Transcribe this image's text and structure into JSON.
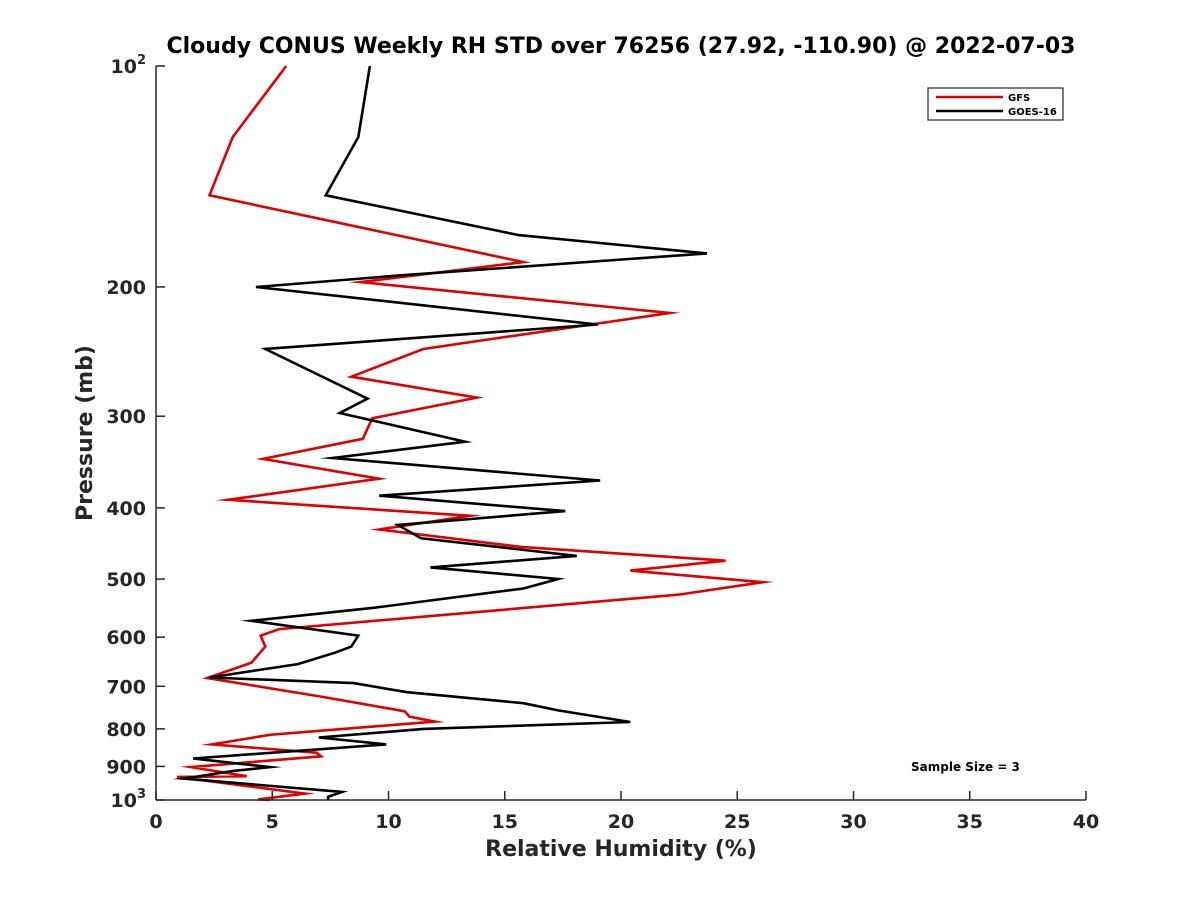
{
  "chart_data": {
    "type": "line",
    "title": "Cloudy CONUS Weekly RH STD over 76256 (27.92, -110.90) @ 2022-07-03",
    "xlabel": "Relative Humidity (%)",
    "ylabel": "Pressure (mb)",
    "xlim": [
      0,
      40
    ],
    "ylim": [
      100,
      1000
    ],
    "yscale": "log",
    "yreverse": true,
    "x_ticks": [
      0,
      5,
      10,
      15,
      20,
      25,
      30,
      35,
      40
    ],
    "x_tick_labels": [
      "0",
      "5",
      "10",
      "15",
      "20",
      "25",
      "30",
      "35",
      "40"
    ],
    "y_ticks": [
      100,
      200,
      300,
      400,
      500,
      600,
      700,
      800,
      900,
      1000
    ],
    "y_tick_labels": [
      {
        "base": "10",
        "exp": "2"
      },
      {
        "base": "200",
        "exp": ""
      },
      {
        "base": "300",
        "exp": ""
      },
      {
        "base": "400",
        "exp": ""
      },
      {
        "base": "500",
        "exp": ""
      },
      {
        "base": "600",
        "exp": ""
      },
      {
        "base": "700",
        "exp": ""
      },
      {
        "base": "800",
        "exp": ""
      },
      {
        "base": "900",
        "exp": ""
      },
      {
        "base": "10",
        "exp": "3"
      }
    ],
    "grid": false,
    "legend_position": "top-right",
    "annotation": "Sample Size = 3",
    "series": [
      {
        "name": "GFS",
        "color": "#e00000",
        "points": [
          [
            5.6,
            100
          ],
          [
            3.3,
            125
          ],
          [
            2.3,
            150
          ],
          [
            15.8,
            185
          ],
          [
            8.8,
            197
          ],
          [
            22.1,
            217
          ],
          [
            11.5,
            243
          ],
          [
            8.4,
            265
          ],
          [
            13.8,
            283
          ],
          [
            9.3,
            302
          ],
          [
            8.9,
            322
          ],
          [
            4.6,
            343
          ],
          [
            9.6,
            365
          ],
          [
            3.1,
            390
          ],
          [
            13.5,
            410
          ],
          [
            9.6,
            428
          ],
          [
            15.7,
            452
          ],
          [
            24.5,
            472
          ],
          [
            20.4,
            487
          ],
          [
            26.1,
            505
          ],
          [
            22.5,
            525
          ],
          [
            5.3,
            585
          ],
          [
            4.5,
            597
          ],
          [
            4.7,
            618
          ],
          [
            4.1,
            650
          ],
          [
            2.2,
            682
          ],
          [
            7.1,
            723
          ],
          [
            10.7,
            757
          ],
          [
            10.9,
            770
          ],
          [
            12.0,
            782
          ],
          [
            4.9,
            815
          ],
          [
            2.4,
            840
          ],
          [
            6.9,
            862
          ],
          [
            7.1,
            872
          ],
          [
            1.5,
            902
          ],
          [
            3.9,
            928
          ],
          [
            0.9,
            930
          ],
          [
            6.4,
            980
          ],
          [
            4.4,
            998
          ],
          [
            4.9,
            1000
          ]
        ]
      },
      {
        "name": "GOES-16",
        "color": "#000000",
        "points": [
          [
            9.2,
            100
          ],
          [
            8.7,
            125
          ],
          [
            7.3,
            150
          ],
          [
            15.6,
            170
          ],
          [
            23.7,
            180
          ],
          [
            10.4,
            193
          ],
          [
            4.3,
            200
          ],
          [
            19.0,
            225
          ],
          [
            4.7,
            243
          ],
          [
            9.1,
            284
          ],
          [
            7.9,
            297
          ],
          [
            13.3,
            325
          ],
          [
            7.6,
            342
          ],
          [
            19.1,
            367
          ],
          [
            9.6,
            385
          ],
          [
            17.6,
            404
          ],
          [
            10.4,
            422
          ],
          [
            11.4,
            440
          ],
          [
            18.1,
            465
          ],
          [
            11.8,
            482
          ],
          [
            17.3,
            500
          ],
          [
            15.8,
            515
          ],
          [
            9.4,
            547
          ],
          [
            4.1,
            570
          ],
          [
            8.7,
            597
          ],
          [
            8.4,
            618
          ],
          [
            7.7,
            630
          ],
          [
            6.1,
            653
          ],
          [
            2.3,
            681
          ],
          [
            8.5,
            693
          ],
          [
            10.8,
            713
          ],
          [
            15.8,
            738
          ],
          [
            17.3,
            755
          ],
          [
            20.4,
            783
          ],
          [
            11.5,
            800
          ],
          [
            7.0,
            822
          ],
          [
            9.9,
            840
          ],
          [
            1.6,
            878
          ],
          [
            4.9,
            902
          ],
          [
            3.3,
            913
          ],
          [
            1.2,
            935
          ],
          [
            8.0,
            975
          ],
          [
            7.4,
            990
          ],
          [
            7.4,
            1000
          ]
        ]
      }
    ]
  }
}
